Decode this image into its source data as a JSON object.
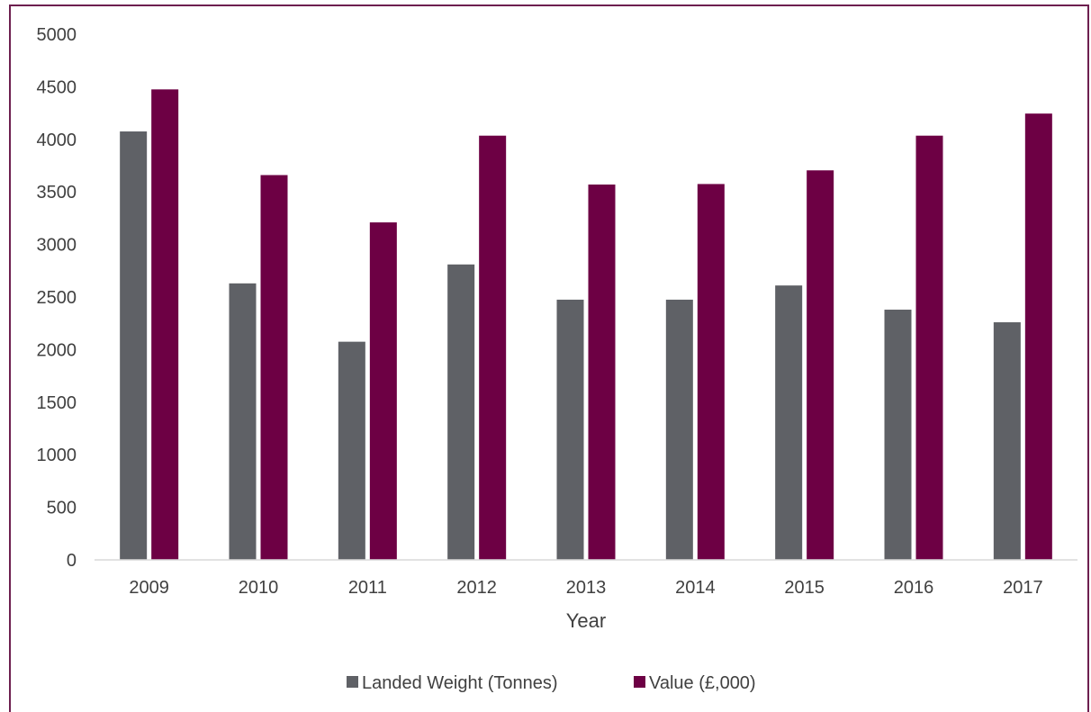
{
  "chart_data": {
    "type": "bar",
    "categories": [
      "2009",
      "2010",
      "2011",
      "2012",
      "2013",
      "2014",
      "2015",
      "2016",
      "2017"
    ],
    "series": [
      {
        "name": "Landed Weight (Tonnes)",
        "color": "#5f6166",
        "values": [
          4075,
          2630,
          2075,
          2810,
          2475,
          2475,
          2610,
          2380,
          2260
        ]
      },
      {
        "name": "Value (£,000)",
        "color": "#6d0044",
        "values": [
          4475,
          3660,
          3210,
          4035,
          3570,
          3575,
          3705,
          4035,
          4245
        ]
      }
    ],
    "title": "",
    "xlabel": "Year",
    "ylabel": "",
    "ylim": [
      0,
      5000
    ],
    "yticks": [
      "0",
      "500",
      "1000",
      "1500",
      "2000",
      "2500",
      "3000",
      "3500",
      "4000",
      "4500",
      "5000"
    ],
    "grid": false,
    "legend_position": "bottom"
  }
}
